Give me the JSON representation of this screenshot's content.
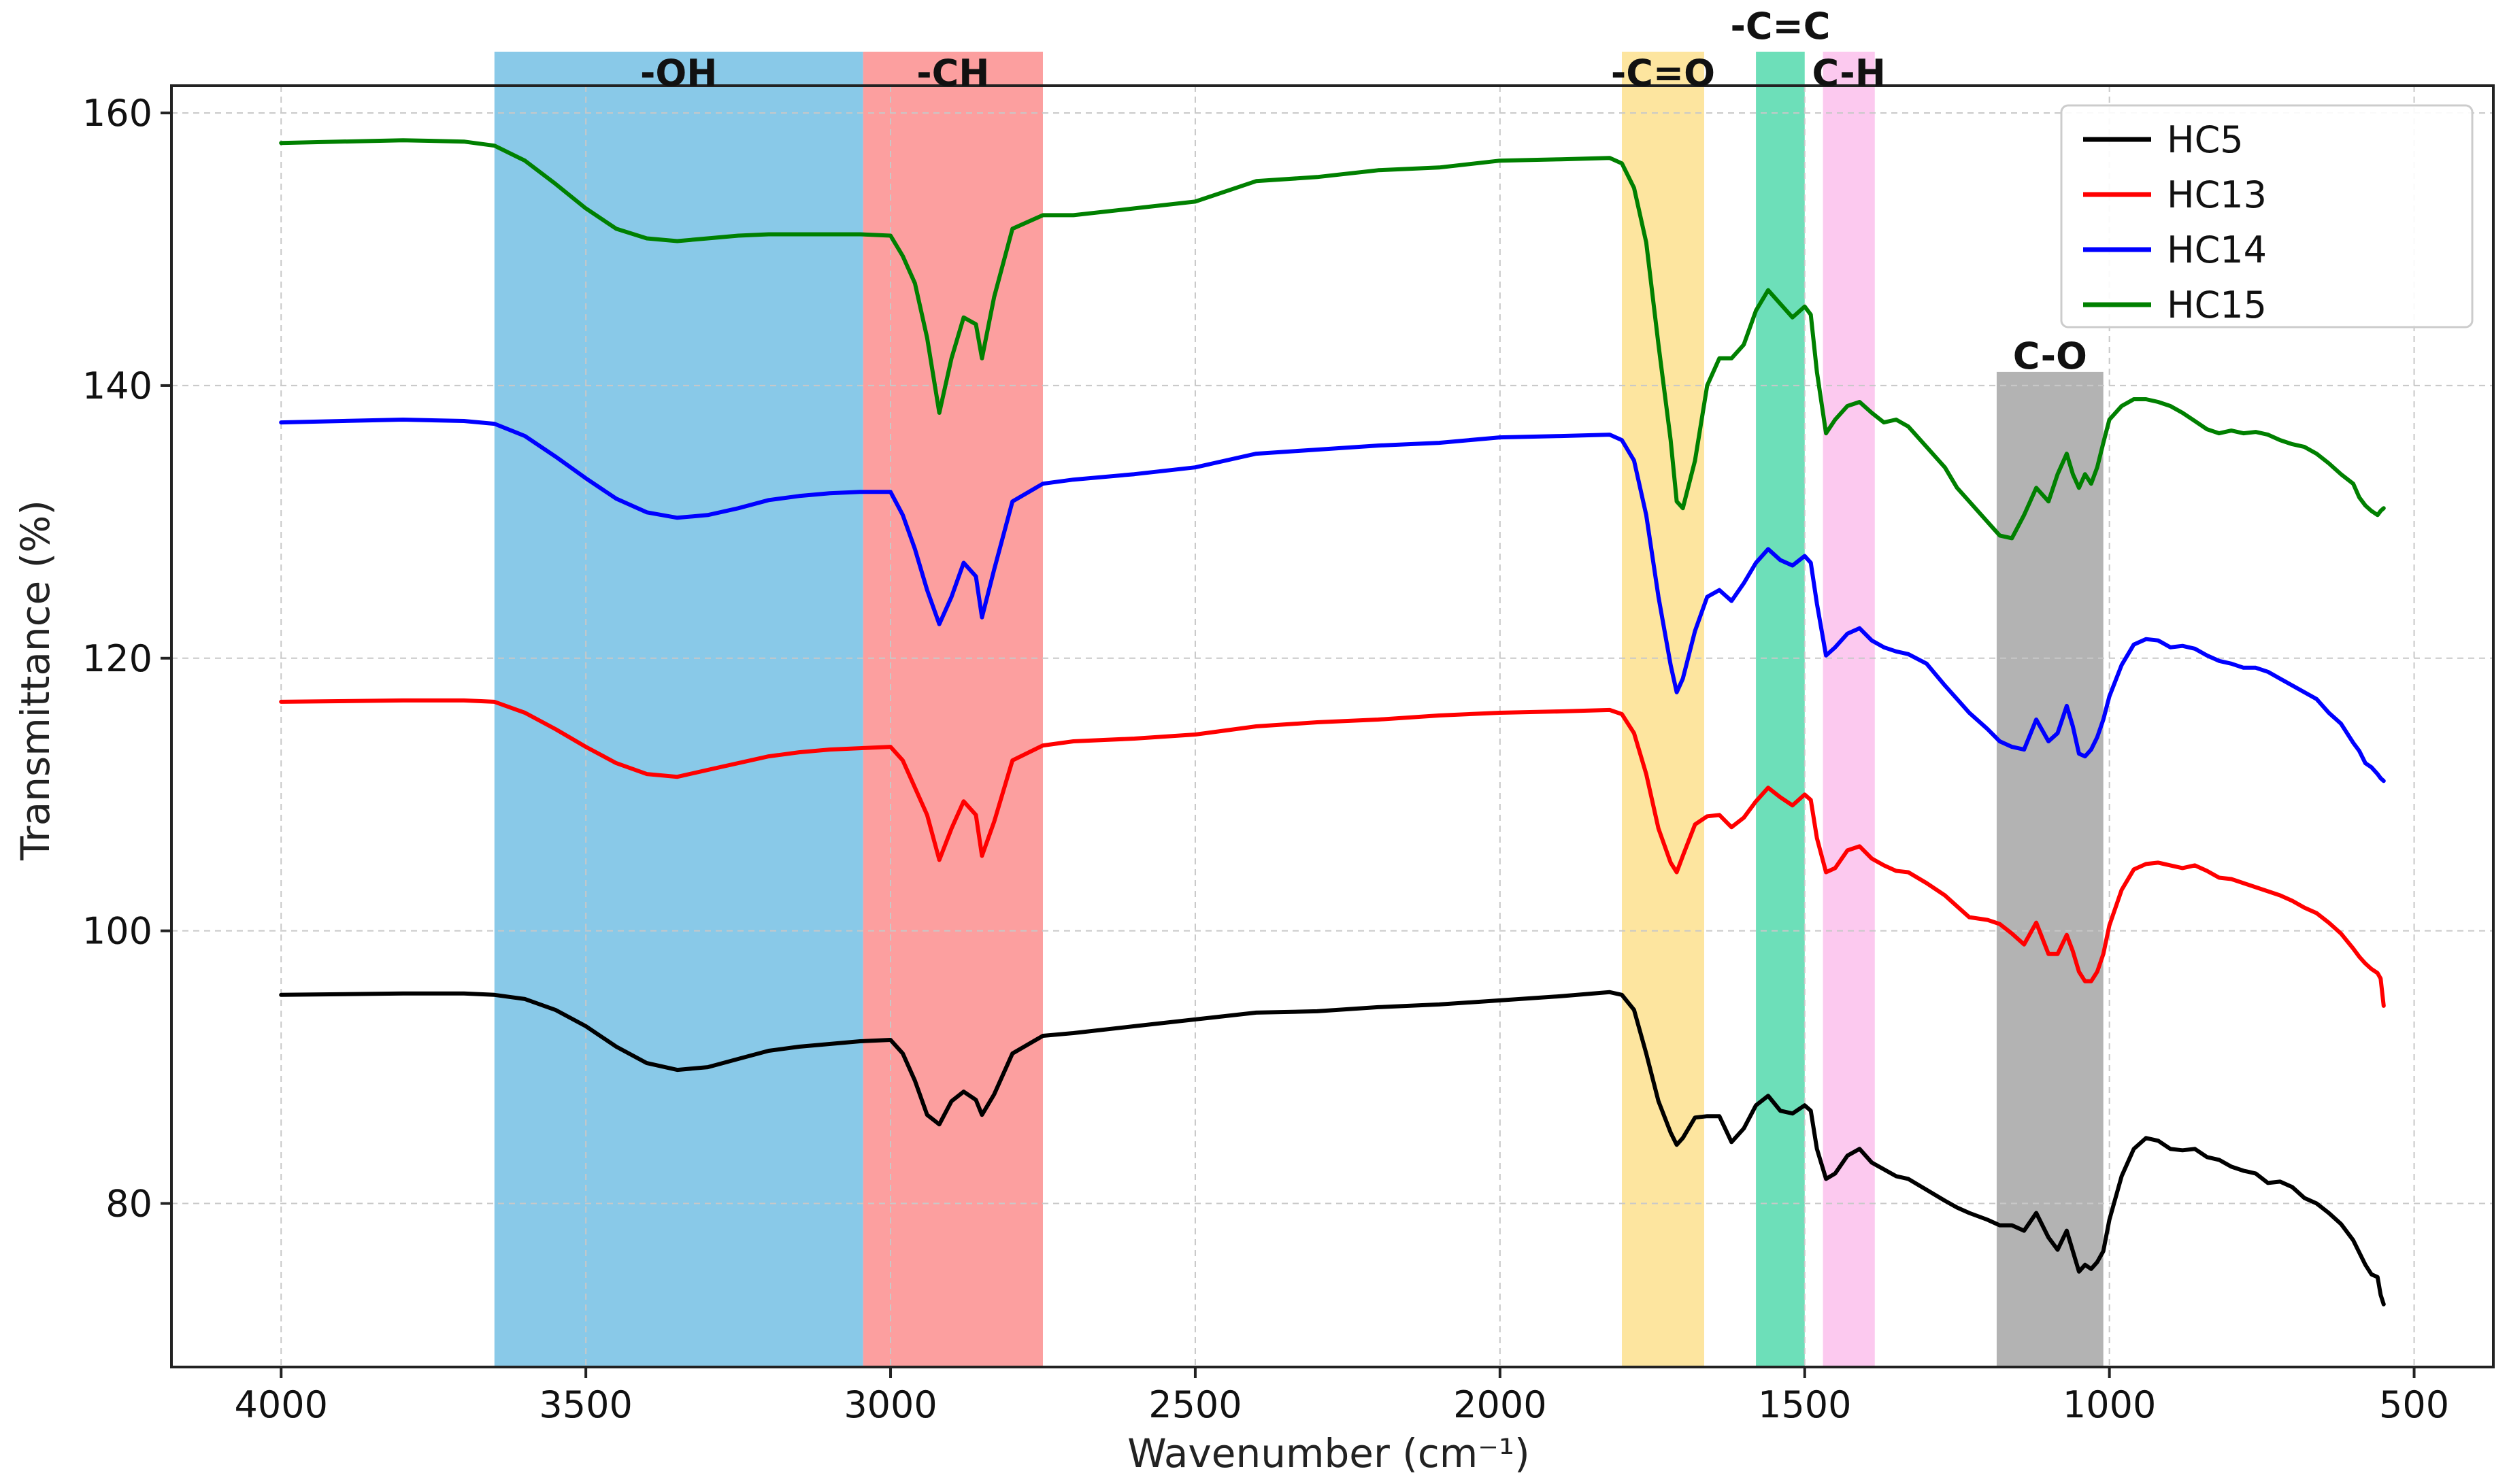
{
  "chart_data": {
    "type": "line",
    "title": "",
    "xlabel": "Wavenumber (cm⁻¹)",
    "ylabel": "Transmittance (%)",
    "xlim": [
      4180,
      370
    ],
    "ylim": [
      68,
      162
    ],
    "x_reversed": true,
    "grid": true,
    "legend_position": "top-right",
    "x_ticks": [
      4000,
      3500,
      3000,
      2500,
      2000,
      1500,
      1000,
      500
    ],
    "y_ticks": [
      80,
      100,
      120,
      140,
      160
    ],
    "bands": [
      {
        "label": "-OH",
        "from": 3650,
        "to": 3045,
        "color": "#74bfe4"
      },
      {
        "label": "-CH",
        "from": 3045,
        "to": 2750,
        "color": "#fc8e8e"
      },
      {
        "label": "-C=O",
        "from": 1800,
        "to": 1665,
        "color": "#fde08e"
      },
      {
        "label": "-C=C",
        "from": 1580,
        "to": 1500,
        "color": "#53d9ad"
      },
      {
        "label": "C-H",
        "from": 1470,
        "to": 1385,
        "color": "#fcc0ec"
      },
      {
        "label": "C-O",
        "from": 1185,
        "to": 1010,
        "color": "#a6a6a6",
        "top": 141
      }
    ],
    "series": [
      {
        "name": "HC5",
        "color": "#000000",
        "x": [
          4000,
          3800,
          3700,
          3650,
          3600,
          3550,
          3500,
          3450,
          3400,
          3350,
          3300,
          3250,
          3200,
          3150,
          3100,
          3050,
          3000,
          2980,
          2960,
          2940,
          2920,
          2900,
          2880,
          2860,
          2850,
          2830,
          2800,
          2750,
          2700,
          2600,
          2500,
          2400,
          2300,
          2200,
          2100,
          2000,
          1900,
          1820,
          1800,
          1780,
          1760,
          1740,
          1720,
          1710,
          1700,
          1680,
          1660,
          1640,
          1620,
          1600,
          1580,
          1560,
          1540,
          1520,
          1500,
          1490,
          1480,
          1465,
          1450,
          1430,
          1410,
          1390,
          1370,
          1350,
          1330,
          1300,
          1270,
          1250,
          1230,
          1200,
          1180,
          1160,
          1140,
          1120,
          1100,
          1085,
          1070,
          1060,
          1050,
          1040,
          1030,
          1020,
          1010,
          1000,
          980,
          960,
          940,
          920,
          900,
          880,
          860,
          840,
          820,
          800,
          780,
          760,
          740,
          720,
          700,
          680,
          660,
          640,
          620,
          600,
          590,
          580,
          570,
          560,
          555,
          550
        ],
        "y": [
          95.3,
          95.4,
          95.4,
          95.3,
          95,
          94.2,
          93,
          91.5,
          90.3,
          89.8,
          90,
          90.6,
          91.2,
          91.5,
          91.7,
          91.9,
          92,
          91,
          89,
          86.5,
          85.8,
          87.5,
          88.2,
          87.6,
          86.5,
          88,
          91,
          92.3,
          92.5,
          93,
          93.5,
          94,
          94.1,
          94.4,
          94.6,
          94.9,
          95.2,
          95.5,
          95.3,
          94.2,
          91,
          87.5,
          85.2,
          84.3,
          84.8,
          86.3,
          86.4,
          86.4,
          84.5,
          85.5,
          87.2,
          87.9,
          86.8,
          86.6,
          87.2,
          86.8,
          84,
          81.8,
          82.2,
          83.5,
          84,
          83,
          82.5,
          82,
          81.8,
          81,
          80.2,
          79.7,
          79.3,
          78.8,
          78.4,
          78.4,
          78,
          79.3,
          77.5,
          76.6,
          78,
          76.5,
          75,
          75.5,
          75.2,
          75.7,
          76.5,
          78.8,
          82,
          84,
          84.8,
          84.6,
          84,
          83.9,
          84,
          83.4,
          83.2,
          82.7,
          82.4,
          82.2,
          81.5,
          81.6,
          81.2,
          80.4,
          80,
          79.3,
          78.5,
          77.3,
          76.4,
          75.5,
          74.8,
          74.6,
          73.3,
          72.6
        ]
      },
      {
        "name": "HC13",
        "color": "#ff0000",
        "x": [
          4000,
          3800,
          3700,
          3650,
          3600,
          3550,
          3500,
          3450,
          3400,
          3350,
          3300,
          3250,
          3200,
          3150,
          3100,
          3050,
          3000,
          2980,
          2960,
          2940,
          2920,
          2900,
          2880,
          2860,
          2850,
          2830,
          2800,
          2750,
          2700,
          2600,
          2500,
          2400,
          2300,
          2200,
          2100,
          2000,
          1900,
          1820,
          1800,
          1780,
          1760,
          1740,
          1720,
          1710,
          1700,
          1680,
          1660,
          1640,
          1620,
          1600,
          1580,
          1560,
          1540,
          1520,
          1500,
          1490,
          1480,
          1465,
          1450,
          1430,
          1410,
          1390,
          1370,
          1350,
          1330,
          1300,
          1270,
          1250,
          1230,
          1200,
          1180,
          1160,
          1140,
          1120,
          1100,
          1085,
          1070,
          1060,
          1050,
          1040,
          1030,
          1020,
          1010,
          1000,
          980,
          960,
          940,
          920,
          900,
          880,
          860,
          840,
          820,
          800,
          780,
          760,
          740,
          720,
          700,
          680,
          660,
          640,
          620,
          600,
          590,
          580,
          570,
          560,
          555,
          550
        ],
        "y": [
          116.8,
          116.9,
          116.9,
          116.8,
          116,
          114.8,
          113.5,
          112.3,
          111.5,
          111.3,
          111.8,
          112.3,
          112.8,
          113.1,
          113.3,
          113.4,
          113.5,
          112.5,
          110.5,
          108.5,
          105.2,
          107.5,
          109.5,
          108.5,
          105.5,
          108,
          112.5,
          113.6,
          113.9,
          114.1,
          114.4,
          115,
          115.3,
          115.5,
          115.8,
          116,
          116.1,
          116.2,
          115.9,
          114.5,
          111.5,
          107.5,
          105,
          104.3,
          105.5,
          107.8,
          108.4,
          108.5,
          107.6,
          108.3,
          109.5,
          110.5,
          109.8,
          109.2,
          110,
          109.6,
          106.8,
          104.3,
          104.6,
          105.9,
          106.2,
          105.3,
          104.8,
          104.4,
          104.3,
          103.5,
          102.6,
          101.8,
          101,
          100.8,
          100.5,
          99.8,
          99,
          100.6,
          98.3,
          98.3,
          99.7,
          98.5,
          97,
          96.3,
          96.3,
          97,
          98.3,
          100.4,
          103,
          104.5,
          104.9,
          105,
          104.8,
          104.6,
          104.8,
          104.4,
          103.9,
          103.8,
          103.5,
          103.2,
          102.9,
          102.6,
          102.2,
          101.7,
          101.3,
          100.6,
          99.8,
          98.7,
          98.1,
          97.6,
          97.2,
          96.9,
          96.5,
          94.5
        ]
      },
      {
        "name": "HC14",
        "color": "#0000ff",
        "x": [
          4000,
          3800,
          3700,
          3650,
          3600,
          3550,
          3500,
          3450,
          3400,
          3350,
          3300,
          3250,
          3200,
          3150,
          3100,
          3050,
          3000,
          2980,
          2960,
          2940,
          2920,
          2900,
          2880,
          2860,
          2850,
          2830,
          2800,
          2750,
          2700,
          2600,
          2500,
          2400,
          2300,
          2200,
          2100,
          2000,
          1900,
          1820,
          1800,
          1780,
          1760,
          1740,
          1720,
          1710,
          1700,
          1680,
          1660,
          1640,
          1620,
          1600,
          1580,
          1560,
          1540,
          1520,
          1500,
          1490,
          1480,
          1465,
          1450,
          1430,
          1410,
          1390,
          1370,
          1350,
          1330,
          1300,
          1270,
          1250,
          1230,
          1200,
          1180,
          1160,
          1140,
          1120,
          1100,
          1085,
          1070,
          1060,
          1050,
          1040,
          1030,
          1020,
          1010,
          1000,
          980,
          960,
          940,
          920,
          900,
          880,
          860,
          840,
          820,
          800,
          780,
          760,
          740,
          720,
          700,
          680,
          660,
          640,
          620,
          600,
          590,
          580,
          570,
          560,
          555,
          550
        ],
        "y": [
          137.3,
          137.5,
          137.4,
          137.2,
          136.3,
          134.8,
          133.2,
          131.7,
          130.7,
          130.3,
          130.5,
          131,
          131.6,
          131.9,
          132.1,
          132.2,
          132.2,
          130.5,
          128,
          125,
          122.5,
          124.5,
          127,
          126,
          123,
          126.5,
          131.5,
          132.8,
          133.1,
          133.5,
          134,
          135,
          135.3,
          135.6,
          135.8,
          136.2,
          136.3,
          136.4,
          136,
          134.5,
          130.5,
          124.5,
          119.5,
          117.5,
          118.5,
          122,
          124.5,
          125,
          124.2,
          125.5,
          127,
          128,
          127.2,
          126.8,
          127.5,
          127,
          124,
          120.2,
          120.8,
          121.8,
          122.2,
          121.3,
          120.8,
          120.5,
          120.3,
          119.6,
          118,
          117,
          116,
          114.8,
          113.9,
          113.5,
          113.3,
          115.5,
          113.9,
          114.5,
          116.5,
          115,
          113,
          112.8,
          113.3,
          114.2,
          115.5,
          117.2,
          119.5,
          121,
          121.4,
          121.3,
          120.8,
          120.9,
          120.7,
          120.2,
          119.8,
          119.6,
          119.3,
          119.3,
          119,
          118.5,
          118,
          117.5,
          117,
          116,
          115.2,
          113.8,
          113.2,
          112.3,
          112,
          111.5,
          111.2,
          111
        ]
      },
      {
        "name": "HC15",
        "color": "#008000",
        "x": [
          4000,
          3800,
          3700,
          3650,
          3600,
          3550,
          3500,
          3450,
          3400,
          3350,
          3300,
          3250,
          3200,
          3150,
          3100,
          3050,
          3000,
          2980,
          2960,
          2940,
          2920,
          2900,
          2880,
          2860,
          2850,
          2830,
          2800,
          2750,
          2700,
          2600,
          2500,
          2400,
          2300,
          2200,
          2100,
          2000,
          1900,
          1820,
          1800,
          1780,
          1760,
          1740,
          1720,
          1710,
          1700,
          1680,
          1660,
          1640,
          1620,
          1600,
          1580,
          1560,
          1540,
          1520,
          1500,
          1490,
          1480,
          1465,
          1450,
          1430,
          1410,
          1390,
          1370,
          1350,
          1330,
          1300,
          1270,
          1250,
          1230,
          1200,
          1180,
          1160,
          1140,
          1120,
          1100,
          1085,
          1070,
          1060,
          1050,
          1040,
          1030,
          1020,
          1010,
          1000,
          980,
          960,
          940,
          920,
          900,
          880,
          860,
          840,
          820,
          800,
          780,
          760,
          740,
          720,
          700,
          680,
          660,
          640,
          620,
          600,
          590,
          580,
          570,
          560,
          555,
          550
        ],
        "y": [
          157.8,
          158,
          157.9,
          157.6,
          156.5,
          154.8,
          153,
          151.5,
          150.8,
          150.6,
          150.8,
          151,
          151.1,
          151.1,
          151.1,
          151.1,
          151,
          149.5,
          147.5,
          143.5,
          138,
          142,
          145,
          144.5,
          142,
          146.5,
          151.5,
          152.5,
          152.5,
          153,
          153.5,
          155,
          155.3,
          155.8,
          156,
          156.5,
          156.6,
          156.7,
          156.3,
          154.5,
          150.5,
          143,
          136,
          131.5,
          131,
          134.5,
          140,
          142,
          142,
          143,
          145.5,
          147,
          146,
          145,
          145.8,
          145.2,
          141,
          136.5,
          137.5,
          138.5,
          138.8,
          138,
          137.3,
          137.5,
          137,
          135.5,
          134,
          132.5,
          131.5,
          130,
          129,
          128.8,
          130.5,
          132.5,
          131.5,
          133.5,
          135,
          133.5,
          132.5,
          133.5,
          132.8,
          134,
          135.8,
          137.5,
          138.5,
          139,
          139,
          138.8,
          138.5,
          138,
          137.4,
          136.8,
          136.5,
          136.7,
          136.5,
          136.6,
          136.4,
          136,
          135.7,
          135.5,
          135,
          134.3,
          133.5,
          132.8,
          131.8,
          131.2,
          130.8,
          130.5,
          130.8,
          131
        ]
      }
    ]
  }
}
